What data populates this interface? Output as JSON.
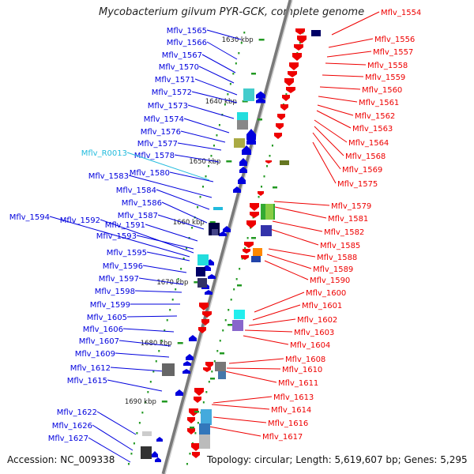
{
  "title": "Mycobacterium gilvum PYR-GCK, complete genome",
  "footer": {
    "accession": "Accession: NC_009338",
    "summary": "Topology: circular; Length: 5,619,607 bp; Genes: 5,295"
  },
  "colors": {
    "plus_strand": "#0000dd",
    "minus_strand": "#ee0000",
    "rna": "#22bbdd",
    "tick": "#229922",
    "backbone": "#888888"
  },
  "scale_labels": [
    "1630 kbp",
    "1640 kbp",
    "1650 kbp",
    "1660 kbp",
    "1670 kbp",
    "1680 kbp",
    "1690 kbp"
  ],
  "left_genes": [
    {
      "label": "Mflv_1565",
      "type": "cds"
    },
    {
      "label": "Mflv_1566",
      "type": "cds"
    },
    {
      "label": "Mflv_1567",
      "type": "cds"
    },
    {
      "label": "Mflv_1570",
      "type": "cds"
    },
    {
      "label": "Mflv_1571",
      "type": "cds"
    },
    {
      "label": "Mflv_1572",
      "type": "cds"
    },
    {
      "label": "Mflv_1573",
      "type": "cds"
    },
    {
      "label": "Mflv_1574",
      "type": "cds"
    },
    {
      "label": "Mflv_1576",
      "type": "cds"
    },
    {
      "label": "Mflv_1577",
      "type": "cds"
    },
    {
      "label": "Mflv_1578",
      "type": "cds"
    },
    {
      "label": "Mflv_R0013",
      "type": "rna"
    },
    {
      "label": "Mflv_1580",
      "type": "cds"
    },
    {
      "label": "Mflv_1583",
      "type": "cds"
    },
    {
      "label": "Mflv_1584",
      "type": "cds"
    },
    {
      "label": "Mflv_1586",
      "type": "cds"
    },
    {
      "label": "Mflv_1587",
      "type": "cds"
    },
    {
      "label": "Mflv_1594",
      "type": "cds"
    },
    {
      "label": "Mflv_1592",
      "type": "cds"
    },
    {
      "label": "Mflv_1591",
      "type": "cds"
    },
    {
      "label": "Mflv_1593",
      "type": "cds"
    },
    {
      "label": "Mflv_1595",
      "type": "cds"
    },
    {
      "label": "Mflv_1596",
      "type": "cds"
    },
    {
      "label": "Mflv_1597",
      "type": "cds"
    },
    {
      "label": "Mflv_1598",
      "type": "cds"
    },
    {
      "label": "Mflv_1599",
      "type": "cds"
    },
    {
      "label": "Mflv_1605",
      "type": "cds"
    },
    {
      "label": "Mflv_1606",
      "type": "cds"
    },
    {
      "label": "Mflv_1607",
      "type": "cds"
    },
    {
      "label": "Mflv_1609",
      "type": "cds"
    },
    {
      "label": "Mflv_1612",
      "type": "cds"
    },
    {
      "label": "Mflv_1615",
      "type": "cds"
    },
    {
      "label": "Mflv_1622",
      "type": "cds"
    },
    {
      "label": "Mflv_1626",
      "type": "cds"
    },
    {
      "label": "Mflv_1627",
      "type": "cds"
    }
  ],
  "right_genes": [
    {
      "label": "Mflv_1554"
    },
    {
      "label": "Mflv_1556"
    },
    {
      "label": "Mflv_1557"
    },
    {
      "label": "Mflv_1558"
    },
    {
      "label": "Mflv_1559"
    },
    {
      "label": "Mflv_1560"
    },
    {
      "label": "Mflv_1561"
    },
    {
      "label": "Mflv_1562"
    },
    {
      "label": "Mflv_1563"
    },
    {
      "label": "Mflv_1564"
    },
    {
      "label": "Mflv_1568"
    },
    {
      "label": "Mflv_1569"
    },
    {
      "label": "Mflv_1575"
    },
    {
      "label": "Mflv_1579"
    },
    {
      "label": "Mflv_1581"
    },
    {
      "label": "Mflv_1582"
    },
    {
      "label": "Mflv_1585"
    },
    {
      "label": "Mflv_1588"
    },
    {
      "label": "Mflv_1589"
    },
    {
      "label": "Mflv_1590"
    },
    {
      "label": "Mflv_1600"
    },
    {
      "label": "Mflv_1601"
    },
    {
      "label": "Mflv_1602"
    },
    {
      "label": "Mflv_1603"
    },
    {
      "label": "Mflv_1604"
    },
    {
      "label": "Mflv_1608"
    },
    {
      "label": "Mflv_1610"
    },
    {
      "label": "Mflv_1611"
    },
    {
      "label": "Mflv_1613"
    },
    {
      "label": "Mflv_1614"
    },
    {
      "label": "Mflv_1616"
    },
    {
      "label": "Mflv_1617"
    }
  ]
}
